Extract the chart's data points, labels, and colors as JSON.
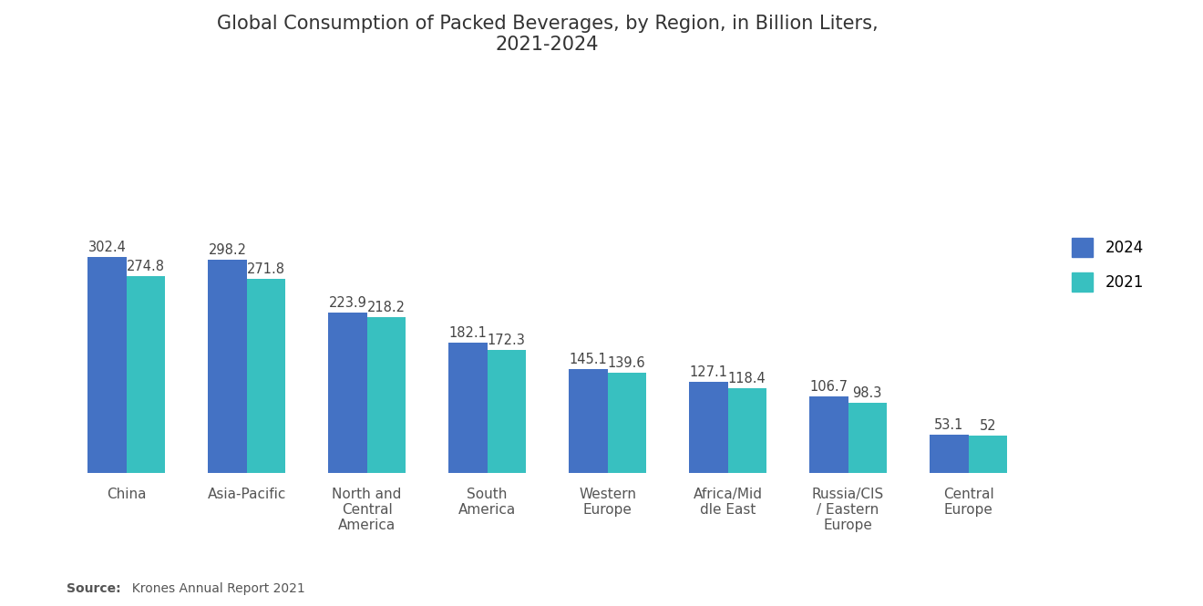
{
  "title": "Global Consumption of Packed Beverages, by Region, in Billion Liters,\n2021-2024",
  "categories": [
    "China",
    "Asia-Pacific",
    "North and\nCentral\nAmerica",
    "South\nAmerica",
    "Western\nEurope",
    "Africa/Mid\ndle East",
    "Russia/CIS\n/ Eastern\nEurope",
    "Central\nEurope"
  ],
  "values_2024": [
    302.4,
    298.2,
    223.9,
    182.1,
    145.1,
    127.1,
    106.7,
    53.1
  ],
  "values_2021": [
    274.8,
    271.8,
    218.2,
    172.3,
    139.6,
    118.4,
    98.3,
    52.0
  ],
  "labels_2024": [
    "302.4",
    "298.2",
    "223.9",
    "182.1",
    "145.1",
    "127.1",
    "106.7",
    "53.1"
  ],
  "labels_2021": [
    "274.8",
    "271.8",
    "218.2",
    "172.3",
    "139.6",
    "118.4",
    "98.3",
    "52"
  ],
  "color_2024": "#4472C4",
  "color_2021": "#38C0C0",
  "legend_2024": "2024",
  "legend_2021": "2021",
  "source_bold": "Source:",
  "source_rest": "  Krones Annual Report 2021",
  "background_color": "#FFFFFF",
  "ylim": [
    0,
    560
  ],
  "bar_width": 0.32,
  "title_fontsize": 15,
  "label_fontsize": 10.5,
  "tick_fontsize": 11,
  "legend_fontsize": 12
}
